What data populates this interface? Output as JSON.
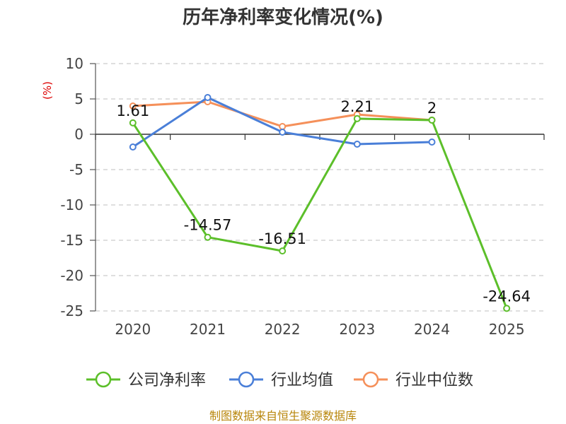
{
  "chart_data": {
    "type": "line",
    "title": "历年净利率变化情况(%)",
    "ylabel": "(%)",
    "xlabel": "",
    "categories": [
      "2020",
      "2021",
      "2022",
      "2023",
      "2024",
      "2025"
    ],
    "ylim": [
      -25,
      10
    ],
    "yticks": [
      10,
      5,
      0,
      -5,
      -10,
      -15,
      -20,
      -25
    ],
    "grid": true,
    "legend_position": "bottom",
    "series": [
      {
        "name": "公司净利率",
        "color": "#5cbf2a",
        "values": [
          1.61,
          -14.57,
          -16.51,
          2.21,
          2,
          -24.64
        ],
        "data_labels": [
          "1.61",
          "-14.57",
          "-16.51",
          "2.21",
          "2",
          "-24.64"
        ]
      },
      {
        "name": "行业均值",
        "color": "#4a7fd8",
        "values": [
          -1.8,
          5.2,
          0.3,
          -1.4,
          -1.1,
          null
        ]
      },
      {
        "name": "行业中位数",
        "color": "#f5905a",
        "values": [
          4.0,
          4.6,
          1.1,
          2.8,
          2.0,
          null
        ]
      }
    ]
  },
  "source": "制图数据来自恒生聚源数据库"
}
